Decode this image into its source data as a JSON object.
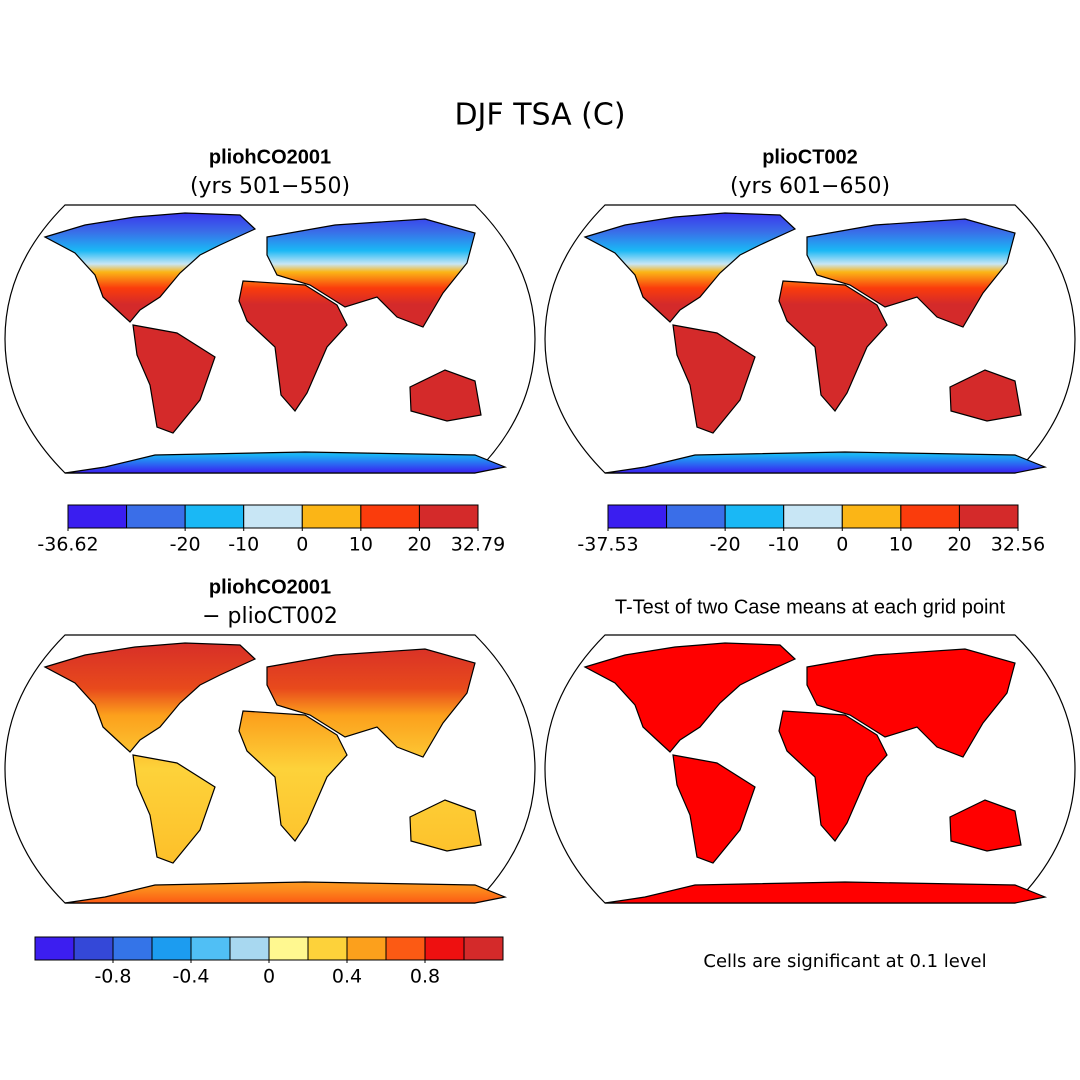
{
  "title": "DJF TSA (C)",
  "panels": [
    {
      "title": "pliohCO2001",
      "subtitle": "(yrs 501−550)",
      "colorbar": {
        "colors": [
          "#3a1ef0",
          "#3a6ee8",
          "#1ab8f5",
          "#c8e6f5",
          "#fbb516",
          "#fa3c0c",
          "#d42a2a"
        ],
        "edges": [
          -36.62,
          null,
          -20,
          -10,
          0,
          10,
          20,
          32.79
        ]
      }
    },
    {
      "title": "plioCT002",
      "subtitle": "(yrs 601−650)",
      "colorbar": {
        "colors": [
          "#3a1ef0",
          "#3a6ee8",
          "#1ab8f5",
          "#c8e6f5",
          "#fbb516",
          "#fa3c0c",
          "#d42a2a"
        ],
        "edges": [
          -37.53,
          null,
          -20,
          -10,
          0,
          10,
          20,
          32.56
        ]
      }
    },
    {
      "title": "pliohCO2001",
      "subtitle": "− plioCT002",
      "colorbar": {
        "colors": [
          "#3c1ef0",
          "#3448d8",
          "#3474e8",
          "#1c9cf0",
          "#50bff5",
          "#a8d8f0",
          "#fff890",
          "#fdd23a",
          "#fca01c",
          "#fc5a14",
          "#ee1010",
          "#d42a2a"
        ],
        "edges": [
          null,
          null,
          -0.8,
          null,
          -0.4,
          null,
          0,
          null,
          0.4,
          null,
          0.8,
          null,
          null
        ]
      }
    },
    {
      "title": "T-Test of two Case means at each grid point",
      "note": "Cells are significant at 0.1 level"
    }
  ]
}
